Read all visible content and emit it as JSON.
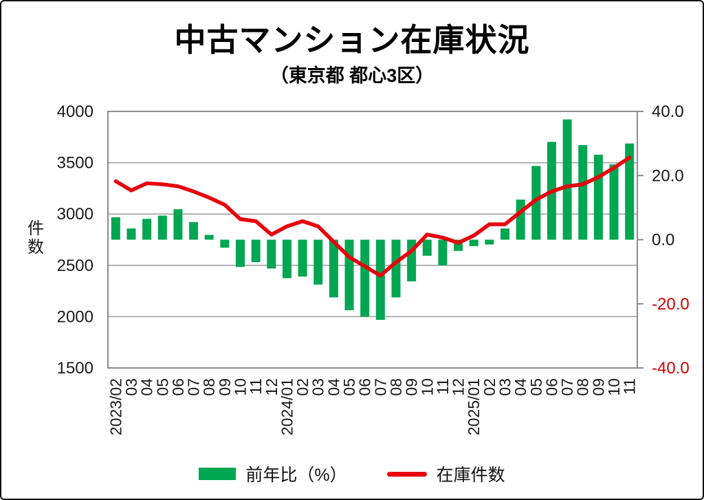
{
  "title": "中古マンション在庫状況",
  "subtitle": "（東京都 都心3区）",
  "legend": {
    "bar_label": "前年比（%）",
    "line_label": "在庫件数"
  },
  "colors": {
    "bar_green": "#00a651",
    "line_red": "#e8000d",
    "negative_tick_red": "#d40000",
    "grid_gray": "#9a9a9a",
    "border_gray": "#7f7f7f",
    "text_black": "#1a1a1a"
  },
  "chart_data": {
    "type": "bar",
    "subtype": "combo bar+line, dual axis",
    "categories": [
      "2023/02",
      "03",
      "04",
      "05",
      "06",
      "07",
      "08",
      "09",
      "10",
      "11",
      "12",
      "2024/01",
      "02",
      "03",
      "04",
      "05",
      "06",
      "07",
      "08",
      "09",
      "10",
      "11",
      "12",
      "2025/01",
      "02",
      "03",
      "04",
      "05",
      "06",
      "07",
      "08",
      "09",
      "10",
      "11"
    ],
    "series": [
      {
        "name": "前年比（%）",
        "type": "bar",
        "axis": "right",
        "color": "#00a651",
        "values": [
          7.0,
          3.5,
          6.5,
          7.5,
          9.5,
          5.5,
          1.5,
          -2.5,
          -8.5,
          -7.0,
          -9.0,
          -12.0,
          -11.5,
          -14.0,
          -18.0,
          -22.0,
          -24.0,
          -25.0,
          -18.0,
          -13.0,
          -5.0,
          -8.0,
          -3.5,
          -2.0,
          -1.5,
          3.5,
          12.5,
          23.0,
          30.5,
          37.5,
          29.5,
          26.5,
          23.5,
          30.0
        ]
      },
      {
        "name": "在庫件数",
        "type": "line",
        "axis": "left",
        "color": "#e8000d",
        "values": [
          3320,
          3230,
          3300,
          3290,
          3270,
          3220,
          3160,
          3090,
          2950,
          2930,
          2800,
          2880,
          2930,
          2880,
          2730,
          2580,
          2490,
          2400,
          2530,
          2640,
          2800,
          2770,
          2720,
          2790,
          2900,
          2900,
          3020,
          3140,
          3220,
          3270,
          3290,
          3360,
          3450,
          3550
        ]
      }
    ],
    "left_axis": {
      "title": "件数",
      "min": 1500,
      "max": 4000,
      "tick_step": 500,
      "ticks": [
        4000,
        3500,
        3000,
        2500,
        2000,
        1500
      ]
    },
    "right_axis": {
      "min": -40,
      "max": 40,
      "tick_step": 20,
      "ticks": [
        "40.0",
        "20.0",
        "0.0",
        "-20.0",
        "-40.0"
      ],
      "negative_label_color": "#d40000"
    },
    "grid": "horizontal gridlines at left-axis 500 intervals",
    "legend_position": "bottom-center"
  }
}
